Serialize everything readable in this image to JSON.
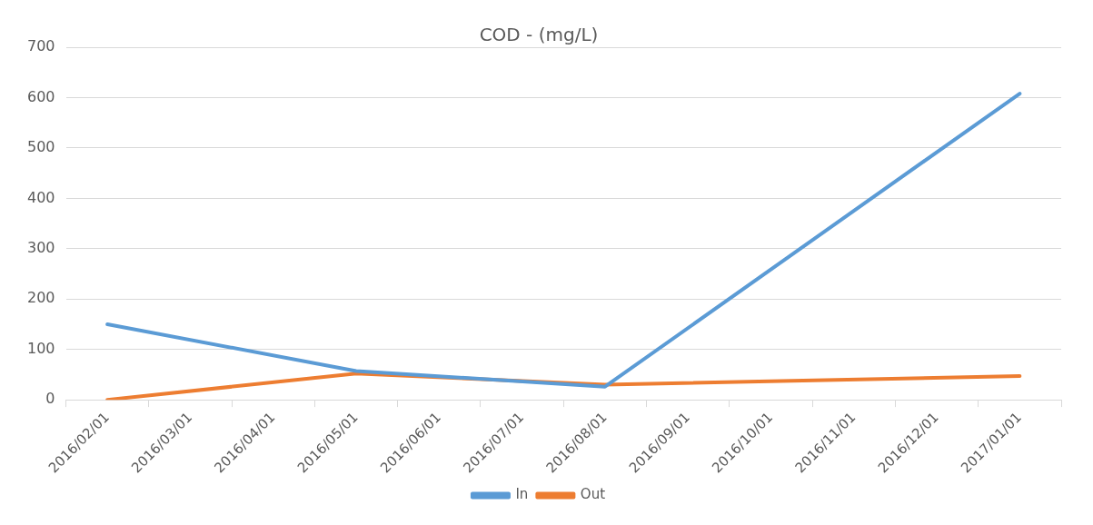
{
  "chart_data": {
    "type": "line",
    "title": "COD - (mg/L)",
    "categories": [
      "2016/02/01",
      "2016/03/01",
      "2016/04/01",
      "2016/05/01",
      "2016/06/01",
      "2016/07/01",
      "2016/08/01",
      "2016/09/01",
      "2016/10/01",
      "2016/11/01",
      "2016/12/01",
      "2017/01/01"
    ],
    "series": [
      {
        "name": "In",
        "color": "#5b9bd5",
        "values": [
          150,
          null,
          null,
          57,
          null,
          null,
          26,
          null,
          null,
          null,
          null,
          608
        ]
      },
      {
        "name": "Out",
        "color": "#ed7d31",
        "values": [
          0,
          null,
          null,
          52,
          null,
          null,
          30,
          null,
          null,
          null,
          null,
          47
        ]
      }
    ],
    "ylim": [
      0,
      700
    ],
    "yticks": [
      0,
      100,
      200,
      300,
      400,
      500,
      600,
      700
    ],
    "grid": "y",
    "legend": "bottom",
    "marker": "none",
    "line_style": "solid"
  }
}
